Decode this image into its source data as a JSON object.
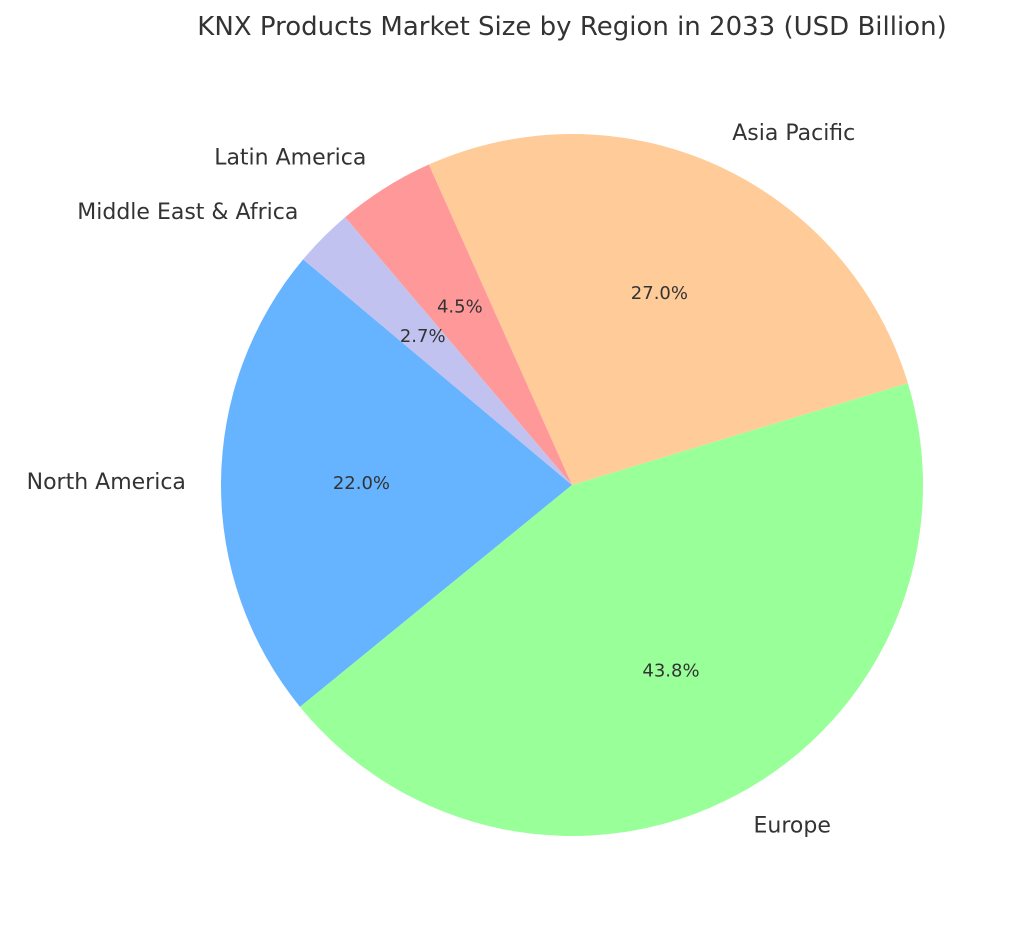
{
  "chart_data": {
    "type": "pie",
    "title": "KNX Products Market Size by Region in 2033 (USD Billion)",
    "start_angle_deg": 140,
    "direction": "counterclockwise",
    "slices": [
      {
        "label": "North America",
        "value": 22.0,
        "pct_label": "22.0%",
        "color": "#66b3ff"
      },
      {
        "label": "Europe",
        "value": 43.8,
        "pct_label": "43.8%",
        "color": "#99ff99"
      },
      {
        "label": "Asia Pacific",
        "value": 27.0,
        "pct_label": "27.0%",
        "color": "#ffcc99"
      },
      {
        "label": "Latin America",
        "value": 4.5,
        "pct_label": "4.5%",
        "color": "#ff9999"
      },
      {
        "label": "Middle East & Africa",
        "value": 2.7,
        "pct_label": "2.7%",
        "color": "#c2c2f0"
      }
    ]
  }
}
